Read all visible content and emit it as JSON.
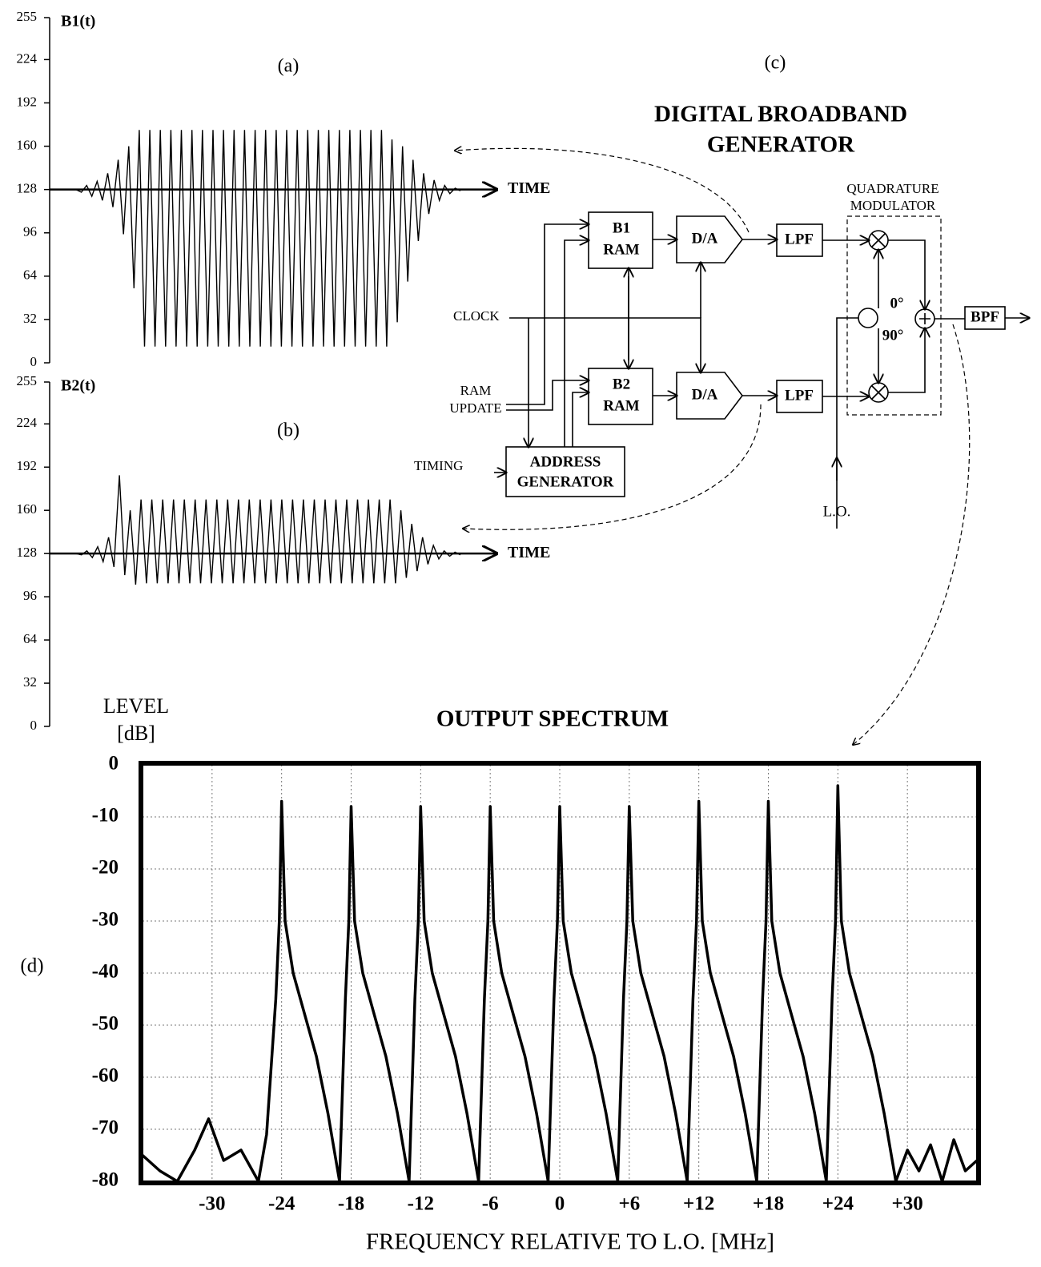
{
  "chart_data": [
    {
      "type": "line",
      "panel": "(a)",
      "y_label": "B1(t)",
      "x_label": "TIME",
      "color": "#000000",
      "ylim": [
        0,
        255
      ],
      "yticks": [
        0,
        32,
        64,
        96,
        128,
        160,
        192,
        224,
        255
      ],
      "values": [
        128,
        126,
        131,
        123,
        134,
        120,
        140,
        115,
        150,
        95,
        160,
        55,
        172,
        12,
        172,
        12,
        172,
        12,
        172,
        12,
        172,
        12,
        172,
        12,
        172,
        12,
        172,
        12,
        172,
        12,
        172,
        12,
        172,
        12,
        172,
        12,
        172,
        12,
        172,
        12,
        172,
        12,
        172,
        12,
        172,
        12,
        172,
        12,
        172,
        12,
        172,
        12,
        172,
        12,
        172,
        12,
        172,
        12,
        172,
        12,
        165,
        30,
        160,
        60,
        150,
        90,
        140,
        110,
        135,
        120,
        131,
        125,
        129,
        127
      ]
    },
    {
      "type": "line",
      "panel": "(b)",
      "y_label": "B2(t)",
      "x_label": "TIME",
      "color": "#000000",
      "ylim": [
        0,
        255
      ],
      "yticks": [
        0,
        32,
        64,
        96,
        128,
        160,
        192,
        224,
        255
      ],
      "values": [
        128,
        127,
        130,
        125,
        133,
        122,
        140,
        118,
        186,
        112,
        160,
        105,
        168,
        106,
        168,
        106,
        168,
        106,
        168,
        106,
        168,
        106,
        168,
        106,
        168,
        106,
        168,
        106,
        168,
        106,
        168,
        106,
        168,
        106,
        168,
        106,
        168,
        106,
        168,
        106,
        168,
        106,
        168,
        106,
        168,
        106,
        168,
        106,
        168,
        106,
        168,
        106,
        168,
        106,
        168,
        106,
        168,
        106,
        168,
        106,
        160,
        110,
        150,
        115,
        140,
        120,
        134,
        124,
        130,
        126,
        129,
        127
      ]
    },
    {
      "type": "line",
      "panel": "(d)",
      "title": "OUTPUT SPECTRUM",
      "y_label": [
        "LEVEL",
        "[dB]"
      ],
      "x_label": "FREQUENCY RELATIVE TO L.O. [MHz]",
      "color": "#000000",
      "grid": true,
      "xlim": [
        -36,
        36
      ],
      "ylim": [
        -80,
        0
      ],
      "xticks": [
        -30,
        -24,
        -18,
        -12,
        -6,
        0,
        {
          "value": 6,
          "label": "+6"
        },
        {
          "value": 12,
          "label": "+12"
        },
        {
          "value": 18,
          "label": "+18"
        },
        {
          "value": 24,
          "label": "+24"
        },
        {
          "value": 30,
          "label": "+30"
        }
      ],
      "yticks": [
        0,
        -10,
        -20,
        -30,
        -40,
        -50,
        -60,
        -70,
        -80
      ],
      "x": [
        -36,
        -34.5,
        -33,
        -31.5,
        -30.3,
        -29,
        -27.5,
        -26,
        -25.3,
        -24.5,
        -24.2,
        -24,
        -23.7,
        -23,
        -22,
        -21,
        -20,
        -19,
        -18.5,
        -18.2,
        -18,
        -17.7,
        -17,
        -16,
        -15,
        -14,
        -13,
        -12.5,
        -12.2,
        -12,
        -11.7,
        -11,
        -10,
        -9,
        -8,
        -7,
        -6.5,
        -6.2,
        -6,
        -5.7,
        -5,
        -4,
        -3,
        -2,
        -1,
        -0.5,
        -0.2,
        0,
        0.3,
        1,
        2,
        3,
        4,
        5,
        5.5,
        5.8,
        6,
        6.3,
        7,
        8,
        9,
        10,
        11,
        11.5,
        11.8,
        12,
        12.3,
        13,
        14,
        15,
        16,
        17,
        17.5,
        17.8,
        18,
        18.3,
        19,
        20,
        21,
        22,
        23,
        23.5,
        23.8,
        24,
        24.3,
        25,
        26,
        27,
        28,
        29,
        30,
        31,
        32,
        33,
        34,
        35,
        36
      ],
      "values": [
        -75,
        -78,
        -80,
        -74,
        -68,
        -76,
        -74,
        -80,
        -71,
        -45,
        -30,
        -7,
        -30,
        -40,
        -48,
        -56,
        -67,
        -80,
        -45,
        -30,
        -8,
        -30,
        -40,
        -48,
        -56,
        -67,
        -80,
        -45,
        -30,
        -8,
        -30,
        -40,
        -48,
        -56,
        -67,
        -80,
        -45,
        -30,
        -8,
        -30,
        -40,
        -48,
        -56,
        -67,
        -80,
        -45,
        -30,
        -8,
        -30,
        -40,
        -48,
        -56,
        -67,
        -80,
        -45,
        -30,
        -8,
        -30,
        -40,
        -48,
        -56,
        -67,
        -80,
        -45,
        -30,
        -7,
        -30,
        -40,
        -48,
        -56,
        -67,
        -80,
        -45,
        -30,
        -7,
        -30,
        -40,
        -48,
        -56,
        -67,
        -80,
        -45,
        -30,
        -4,
        -30,
        -40,
        -48,
        -56,
        -67,
        -80,
        -74,
        -78,
        -73,
        -80,
        -72,
        -78,
        -76
      ]
    }
  ],
  "diagram": {
    "panel": "(c)",
    "title": [
      "DIGITAL BROADBAND",
      "GENERATOR"
    ],
    "b1_ram": [
      "B1",
      "RAM"
    ],
    "b2_ram": [
      "B2",
      "RAM"
    ],
    "da1": "D/A",
    "da2": "D/A",
    "lpf1": "LPF",
    "lpf2": "LPF",
    "bpf": "BPF",
    "address": [
      "ADDRESS",
      "GENERATOR"
    ],
    "modulator": [
      "QUADRATURE",
      "MODULATOR"
    ],
    "phase0": "0°",
    "phase90": "90°",
    "clock": "CLOCK",
    "ram_update": [
      "RAM",
      "UPDATE"
    ],
    "timing": "TIMING",
    "lo": "L.O."
  }
}
